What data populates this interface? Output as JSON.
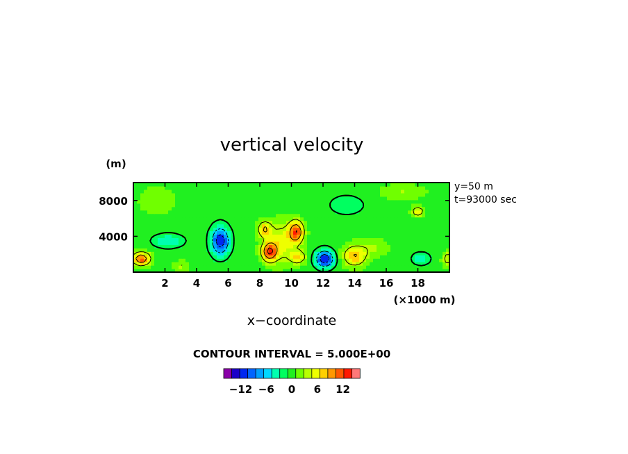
{
  "chart_data": {
    "type": "heatmap",
    "title": "vertical velocity",
    "xlabel": "x−coordinate",
    "x_unit": "(×1000 m)",
    "ylabel_unit": "(m)",
    "xlim": [
      0,
      20
    ],
    "ylim": [
      0,
      10000
    ],
    "xticks": [
      2,
      4,
      6,
      8,
      10,
      12,
      14,
      16,
      18
    ],
    "xtick_labels": [
      "2",
      "4",
      "6",
      "8",
      "10",
      "12",
      "14",
      "16",
      "18"
    ],
    "yticks": [
      4000,
      8000
    ],
    "ytick_labels": [
      "4000",
      "8000"
    ],
    "annotations": [
      "y=50 m",
      "t=93000 sec"
    ],
    "contour_interval_text": "CONTOUR INTERVAL = 5.000E+00",
    "contour_interval": 5.0,
    "colorbar": {
      "tick_values": [
        -12,
        -6,
        0,
        6,
        12
      ],
      "tick_labels": [
        "−12",
        "−6",
        "0",
        "6",
        "12"
      ],
      "levels": [
        -16,
        -14,
        -12,
        -10,
        -8,
        -6,
        -4,
        -2,
        0,
        2,
        4,
        6,
        8,
        10,
        12,
        14,
        16
      ],
      "colors": [
        "#8a00a8",
        "#1a00c8",
        "#0028f0",
        "#0064ff",
        "#00a0ff",
        "#00d8ff",
        "#00ffb0",
        "#00ff60",
        "#20f020",
        "#70ff00",
        "#b8ff00",
        "#eeff00",
        "#ffd000",
        "#ff9800",
        "#ff5800",
        "#ff1800",
        "#ff7878"
      ]
    },
    "features": [
      {
        "x": 0.5,
        "y": 1500,
        "value": 13,
        "sx": 0.55,
        "sy": 700
      },
      {
        "x": 2.2,
        "y": 3500,
        "value": -6,
        "sx": 0.9,
        "sy": 700
      },
      {
        "x": 5.5,
        "y": 3500,
        "value": -14,
        "sx": 0.55,
        "sy": 1500,
        "rot": -40
      },
      {
        "x": 8.6,
        "y": 2300,
        "value": 13,
        "sx": 0.45,
        "sy": 1000
      },
      {
        "x": 8.3,
        "y": 4800,
        "value": 9,
        "sx": 0.4,
        "sy": 800
      },
      {
        "x": 9.3,
        "y": 3300,
        "value": 6,
        "sx": 0.9,
        "sy": 2200
      },
      {
        "x": 10.3,
        "y": 4500,
        "value": 13,
        "sx": 0.45,
        "sy": 1200,
        "rot": -35
      },
      {
        "x": 10.4,
        "y": 1700,
        "value": 8,
        "sx": 0.5,
        "sy": 700
      },
      {
        "x": 12.1,
        "y": 1500,
        "value": -15,
        "sx": 0.55,
        "sy": 900
      },
      {
        "x": 14.0,
        "y": 1800,
        "value": 9,
        "sx": 0.7,
        "sy": 1100
      },
      {
        "x": 15.2,
        "y": 2800,
        "value": 3,
        "sx": 0.9,
        "sy": 1000
      },
      {
        "x": 18.0,
        "y": 6800,
        "value": 8,
        "sx": 0.35,
        "sy": 500
      },
      {
        "x": 18.2,
        "y": 1500,
        "value": -6,
        "sx": 0.5,
        "sy": 600
      },
      {
        "x": 19.9,
        "y": 1500,
        "value": 6,
        "sx": 0.3,
        "sy": 800
      },
      {
        "x": 3.0,
        "y": 700,
        "value": 4,
        "sx": 0.5,
        "sy": 500
      },
      {
        "x": 17.0,
        "y": 9000,
        "value": 3,
        "sx": 1.4,
        "sy": 800
      },
      {
        "x": 1.5,
        "y": 8000,
        "value": 1.5,
        "sx": 1.5,
        "sy": 2000
      },
      {
        "x": 13.5,
        "y": 7500,
        "value": -2,
        "sx": 1.5,
        "sy": 1500
      }
    ]
  }
}
